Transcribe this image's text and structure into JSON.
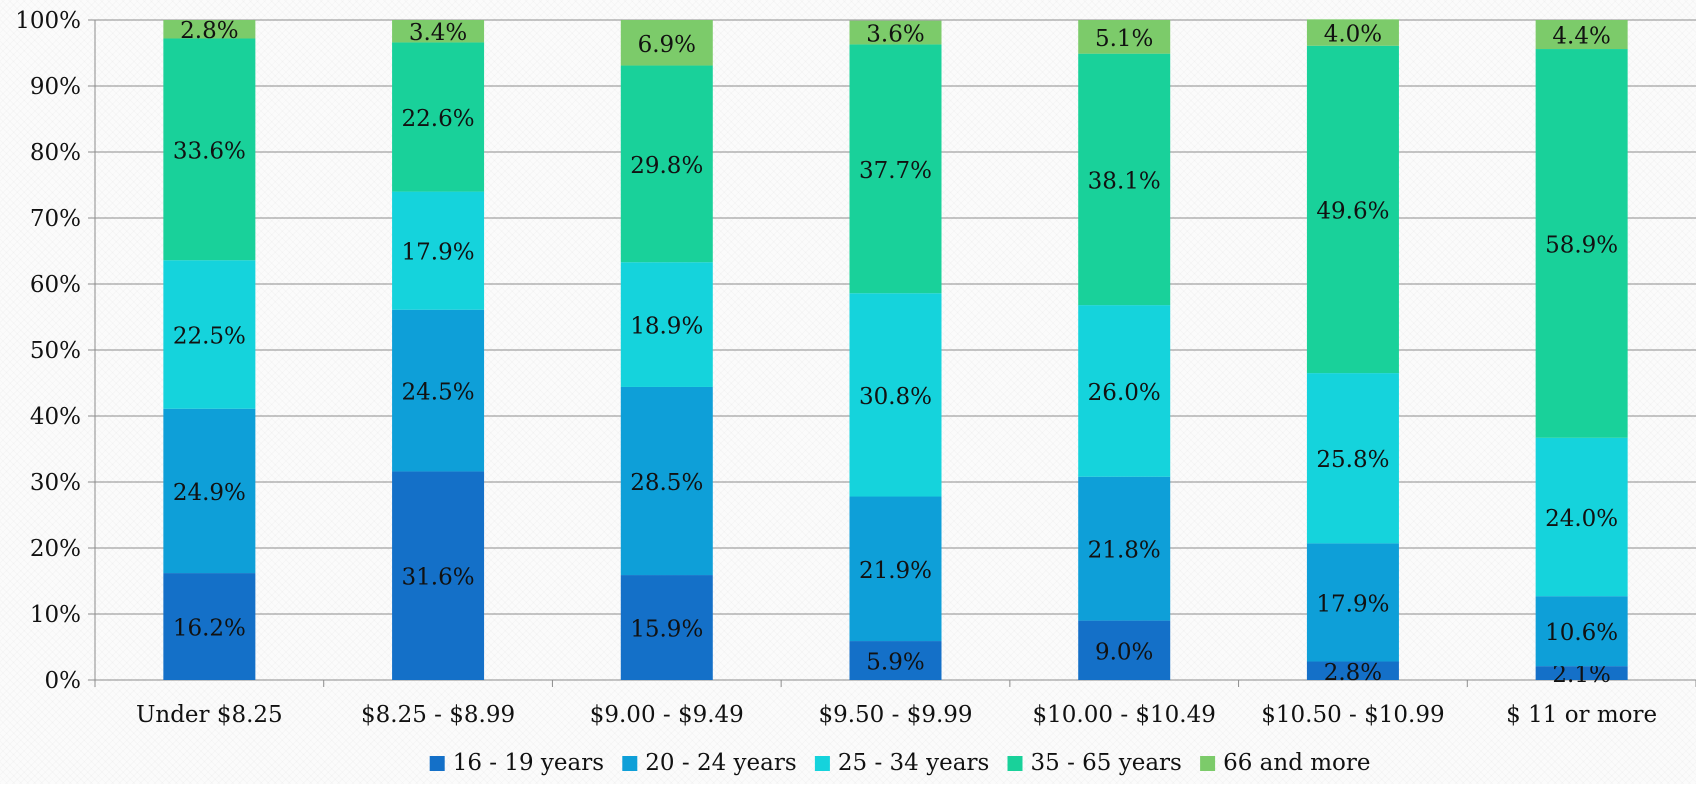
{
  "chart_data": {
    "type": "bar",
    "stacked": true,
    "percent_stacked": true,
    "categories": [
      "Under $8.25",
      "$8.25 - $8.99",
      "$9.00 - $9.49",
      "$9.50 - $9.99",
      "$10.00 - $10.49",
      "$10.50 - $10.99",
      "$ 11 or more"
    ],
    "series": [
      {
        "name": "16 - 19 years",
        "color": "#1470c8",
        "values": [
          16.2,
          31.6,
          15.9,
          5.9,
          9.0,
          2.8,
          2.1
        ],
        "labels": [
          "16.2%",
          "31.6%",
          "15.9%",
          "5.9%",
          "9.0%",
          "2.8%",
          "2.1%"
        ]
      },
      {
        "name": "20 - 24 years",
        "color": "#0e9fd8",
        "values": [
          24.9,
          24.5,
          28.5,
          21.9,
          21.8,
          17.9,
          10.6
        ],
        "labels": [
          "24.9%",
          "24.5%",
          "28.5%",
          "21.9%",
          "21.8%",
          "17.9%",
          "10.6%"
        ]
      },
      {
        "name": "25 - 34 years",
        "color": "#15d3dc",
        "values": [
          22.5,
          17.9,
          18.9,
          30.8,
          26.0,
          25.8,
          24.0
        ],
        "labels": [
          "22.5%",
          "17.9%",
          "18.9%",
          "30.8%",
          "26.0%",
          "25.8%",
          "24.0%"
        ]
      },
      {
        "name": "35 - 65 years",
        "color": "#19d19a",
        "values": [
          33.6,
          22.6,
          29.8,
          37.7,
          38.1,
          49.6,
          58.9
        ],
        "labels": [
          "33.6%",
          "22.6%",
          "29.8%",
          "37.7%",
          "38.1%",
          "49.6%",
          "58.9%"
        ]
      },
      {
        "name": "66 and more",
        "color": "#7ccb6a",
        "values": [
          2.8,
          3.4,
          6.9,
          3.6,
          5.1,
          4.0,
          4.4
        ],
        "labels": [
          "2.8%",
          "3.4%",
          "6.9%",
          "3.6%",
          "5.1%",
          "4.0%",
          "4.4%"
        ]
      }
    ],
    "y_ticks": [
      "0%",
      "10%",
      "20%",
      "30%",
      "40%",
      "50%",
      "60%",
      "70%",
      "80%",
      "90%",
      "100%"
    ],
    "ylim": [
      0,
      100
    ],
    "grid": true,
    "legend_position": "bottom",
    "title": "",
    "xlabel": "",
    "ylabel": ""
  }
}
